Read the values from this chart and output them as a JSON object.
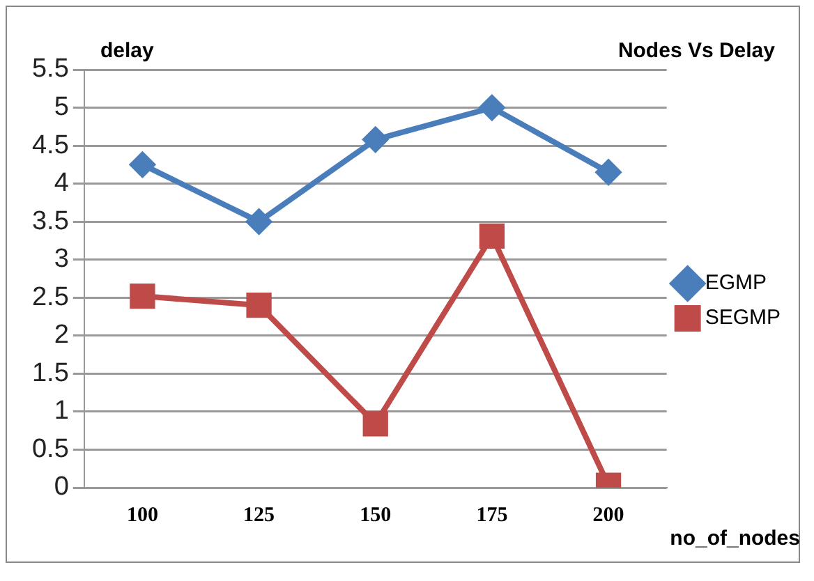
{
  "chart_data": {
    "type": "line",
    "title": "Nodes Vs Delay",
    "ylabel": "delay",
    "xlabel": "no_of_nodes",
    "categories": [
      "100",
      "125",
      "150",
      "175",
      "200"
    ],
    "series": [
      {
        "name": "EGMP",
        "color": "#4a7ebb",
        "marker": "diamond",
        "values": [
          4.25,
          3.5,
          4.58,
          5,
          4.15
        ]
      },
      {
        "name": "SEGMP",
        "color": "#be4b48",
        "marker": "square",
        "values": [
          2.52,
          2.4,
          0.84,
          3.31,
          0.03
        ]
      }
    ],
    "ylim": [
      0,
      5.5
    ],
    "yticks": [
      0,
      0.5,
      1,
      1.5,
      2,
      2.5,
      3,
      3.5,
      4,
      4.5,
      5,
      5.5
    ],
    "grid": "y",
    "legend": "right",
    "line_style": "solid"
  }
}
